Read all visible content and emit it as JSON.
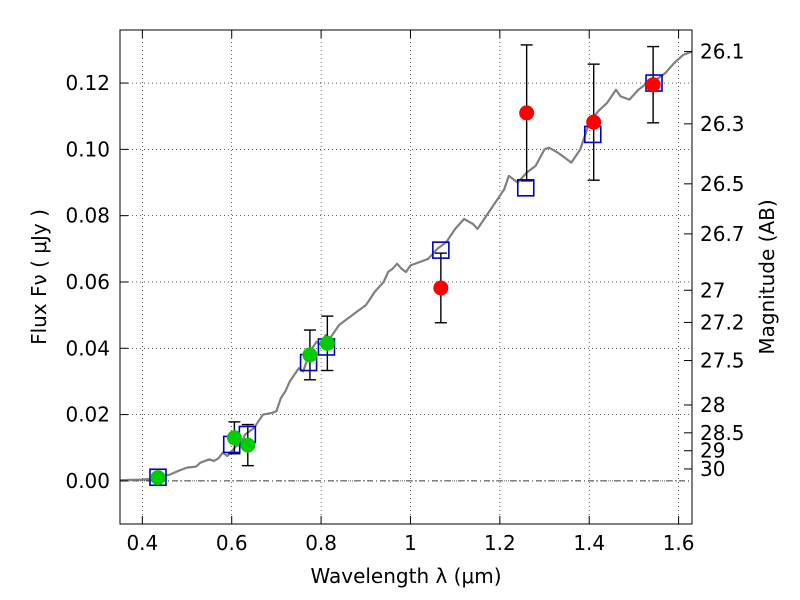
{
  "chart_data": {
    "type": "scatter",
    "xlabel": "Wavelength  λ (μm)",
    "ylabel": "Flux  Fν  ( μJy )",
    "y2label": "Magnitude (AB)",
    "xlim": [
      0.35,
      1.63
    ],
    "ylim": [
      -0.013,
      0.136
    ],
    "grid": true,
    "x_ticks": [
      0.4,
      0.6,
      0.8,
      1.0,
      1.2,
      1.4,
      1.6
    ],
    "x_tick_labels": [
      "0.4",
      "0.6",
      "0.8",
      "1",
      "1.2",
      "1.4",
      "1.6"
    ],
    "y_ticks": [
      0.0,
      0.02,
      0.04,
      0.06,
      0.08,
      0.1,
      0.12
    ],
    "y_tick_labels": [
      "0.00",
      "0.02",
      "0.04",
      "0.06",
      "0.08",
      "0.10",
      "0.12"
    ],
    "y2_ticks": [
      {
        "label": "26.1",
        "flux": 0.1295
      },
      {
        "label": "26.3",
        "flux": 0.1077
      },
      {
        "label": "26.5",
        "flux": 0.0896
      },
      {
        "label": "26.7",
        "flux": 0.0745
      },
      {
        "label": "27",
        "flux": 0.0575
      },
      {
        "label": "27.2",
        "flux": 0.0478
      },
      {
        "label": "27.5",
        "flux": 0.0363
      },
      {
        "label": "28",
        "flux": 0.0229
      },
      {
        "label": "28.5",
        "flux": 0.0145
      },
      {
        "label": "29",
        "flux": 0.0091
      },
      {
        "label": "30",
        "flux": 0.0036
      }
    ],
    "series": [
      {
        "kind": "model_spectrum",
        "color": "#808080",
        "points": [
          [
            0.35,
            0.0002
          ],
          [
            0.4,
            0.0004
          ],
          [
            0.42,
            0.0006
          ],
          [
            0.44,
            0.0015
          ],
          [
            0.46,
            0.0018
          ],
          [
            0.48,
            0.003
          ],
          [
            0.5,
            0.004
          ],
          [
            0.52,
            0.0043
          ],
          [
            0.53,
            0.0055
          ],
          [
            0.55,
            0.0065
          ],
          [
            0.56,
            0.006
          ],
          [
            0.57,
            0.0068
          ],
          [
            0.58,
            0.0085
          ],
          [
            0.59,
            0.0075
          ],
          [
            0.6,
            0.009
          ],
          [
            0.61,
            0.0105
          ],
          [
            0.62,
            0.011
          ],
          [
            0.63,
            0.014
          ],
          [
            0.64,
            0.015
          ],
          [
            0.65,
            0.016
          ],
          [
            0.66,
            0.018
          ],
          [
            0.67,
            0.02
          ],
          [
            0.69,
            0.0205
          ],
          [
            0.7,
            0.021
          ],
          [
            0.71,
            0.025
          ],
          [
            0.72,
            0.027
          ],
          [
            0.73,
            0.03
          ],
          [
            0.74,
            0.032
          ],
          [
            0.75,
            0.034
          ],
          [
            0.76,
            0.033
          ],
          [
            0.77,
            0.037
          ],
          [
            0.78,
            0.04
          ],
          [
            0.79,
            0.042
          ],
          [
            0.8,
            0.041
          ],
          [
            0.81,
            0.044
          ],
          [
            0.82,
            0.043
          ],
          [
            0.83,
            0.045
          ],
          [
            0.84,
            0.047
          ],
          [
            0.85,
            0.048
          ],
          [
            0.86,
            0.049
          ],
          [
            0.87,
            0.05
          ],
          [
            0.88,
            0.051
          ],
          [
            0.89,
            0.052
          ],
          [
            0.9,
            0.053
          ],
          [
            0.91,
            0.055
          ],
          [
            0.92,
            0.057
          ],
          [
            0.93,
            0.0585
          ],
          [
            0.94,
            0.06
          ],
          [
            0.95,
            0.063
          ],
          [
            0.96,
            0.064
          ],
          [
            0.97,
            0.0655
          ],
          [
            0.98,
            0.064
          ],
          [
            0.99,
            0.063
          ],
          [
            1.0,
            0.065
          ],
          [
            1.02,
            0.066
          ],
          [
            1.04,
            0.067
          ],
          [
            1.06,
            0.07
          ],
          [
            1.08,
            0.072
          ],
          [
            1.1,
            0.076
          ],
          [
            1.12,
            0.079
          ],
          [
            1.14,
            0.0775
          ],
          [
            1.15,
            0.076
          ],
          [
            1.17,
            0.08
          ],
          [
            1.19,
            0.084
          ],
          [
            1.21,
            0.088
          ],
          [
            1.22,
            0.092
          ],
          [
            1.24,
            0.09
          ],
          [
            1.26,
            0.093
          ],
          [
            1.28,
            0.095
          ],
          [
            1.3,
            0.1
          ],
          [
            1.31,
            0.1005
          ],
          [
            1.33,
            0.099
          ],
          [
            1.35,
            0.097
          ],
          [
            1.36,
            0.096
          ],
          [
            1.38,
            0.1
          ],
          [
            1.4,
            0.108
          ],
          [
            1.42,
            0.1115
          ],
          [
            1.44,
            0.114
          ],
          [
            1.46,
            0.118
          ],
          [
            1.47,
            0.116
          ],
          [
            1.49,
            0.115
          ],
          [
            1.51,
            0.118
          ],
          [
            1.53,
            0.12
          ],
          [
            1.55,
            0.121
          ],
          [
            1.57,
            0.123
          ],
          [
            1.59,
            0.126
          ],
          [
            1.61,
            0.1285
          ],
          [
            1.63,
            0.1295
          ]
        ]
      },
      {
        "kind": "model_photometry",
        "marker": "open-square",
        "color": "#0000cc",
        "points": [
          [
            0.435,
            0.0011
          ],
          [
            0.6,
            0.011
          ],
          [
            0.635,
            0.014
          ],
          [
            0.772,
            0.0357
          ],
          [
            0.812,
            0.0404
          ],
          [
            1.068,
            0.0696
          ],
          [
            1.258,
            0.0884
          ],
          [
            1.408,
            0.1045
          ],
          [
            1.545,
            0.12
          ]
        ]
      },
      {
        "kind": "observed_optical",
        "marker": "filled-circle",
        "color": "#00cc00",
        "points": [
          {
            "x": 0.435,
            "y": 0.001,
            "err": 0.0
          },
          {
            "x": 0.606,
            "y": 0.013,
            "err": 0.0048
          },
          {
            "x": 0.636,
            "y": 0.0108,
            "err": 0.0062
          },
          {
            "x": 0.775,
            "y": 0.038,
            "err": 0.0075
          },
          {
            "x": 0.814,
            "y": 0.0415,
            "err": 0.0082
          }
        ]
      },
      {
        "kind": "observed_nir",
        "marker": "filled-circle",
        "color": "#ff0000",
        "points": [
          {
            "x": 1.068,
            "y": 0.0582,
            "err": 0.0105
          },
          {
            "x": 1.26,
            "y": 0.111,
            "err": 0.0205
          },
          {
            "x": 1.41,
            "y": 0.1082,
            "err": 0.0175
          },
          {
            "x": 1.543,
            "y": 0.1195,
            "err": 0.0115
          }
        ]
      }
    ]
  }
}
